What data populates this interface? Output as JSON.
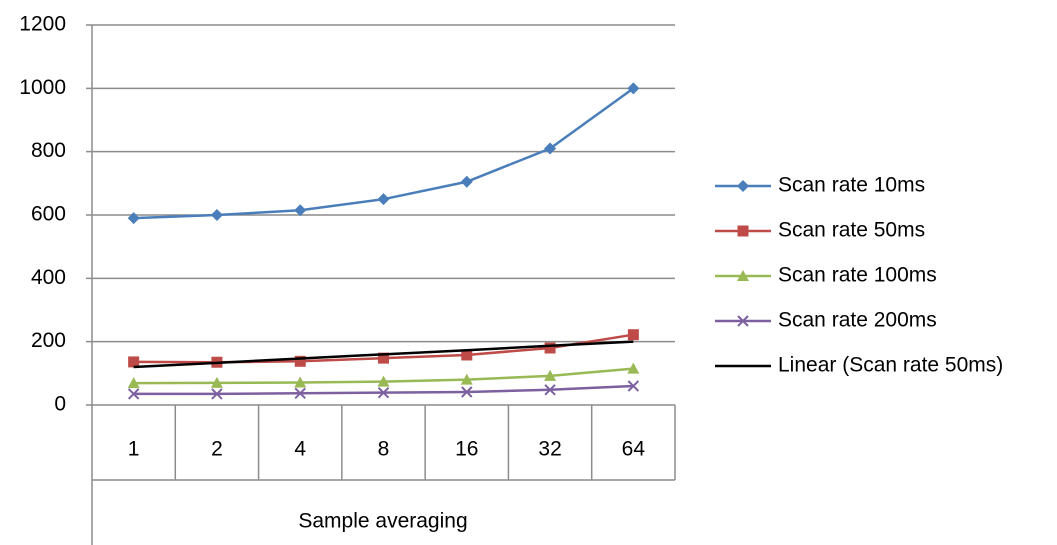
{
  "chart_data": {
    "type": "line",
    "x_label": "Sample averaging",
    "categories": [
      "1",
      "2",
      "4",
      "8",
      "16",
      "32",
      "64"
    ],
    "ylim": [
      0,
      1200
    ],
    "yticks": [
      0,
      200,
      400,
      600,
      800,
      1000,
      1200
    ],
    "grid": true,
    "legend": "right",
    "series": [
      {
        "name": "Scan rate 10ms",
        "color": "#4a7ebb",
        "marker": "diamond",
        "values": [
          590,
          600,
          615,
          650,
          705,
          810,
          1000
        ]
      },
      {
        "name": "Scan rate 50ms",
        "color": "#be4b48",
        "marker": "square",
        "values": [
          136,
          135,
          138,
          148,
          158,
          180,
          222
        ]
      },
      {
        "name": "Scan rate 100ms",
        "color": "#98b954",
        "marker": "triangle",
        "values": [
          69,
          70,
          71,
          74,
          80,
          92,
          115
        ]
      },
      {
        "name": "Scan rate 200ms",
        "color": "#7d60a0",
        "marker": "x",
        "values": [
          35,
          35,
          37,
          39,
          41,
          48,
          60
        ]
      },
      {
        "name": "Linear (Scan rate 50ms)",
        "color": "#000000",
        "marker": "none",
        "values": [
          120,
          133,
          147,
          160,
          173,
          187,
          200
        ]
      }
    ]
  }
}
